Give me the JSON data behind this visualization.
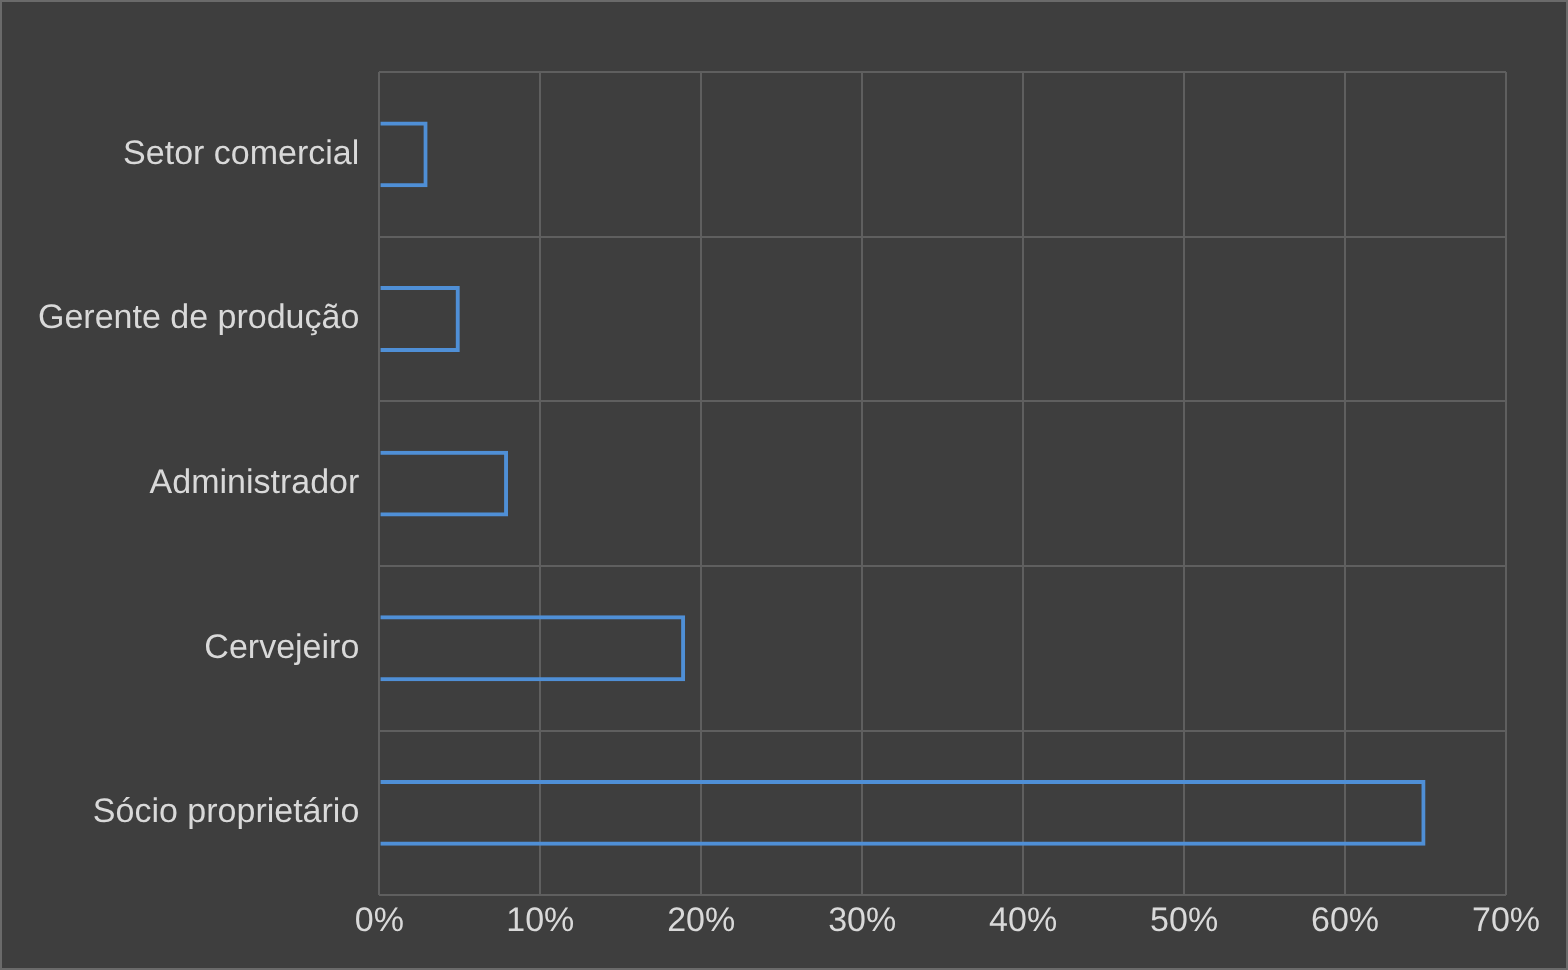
{
  "chart_data": {
    "type": "bar",
    "orientation": "horizontal",
    "categories": [
      "Setor comercial",
      "Gerente de produção",
      "Administrador",
      "Cervejeiro",
      "Sócio proprietário"
    ],
    "values": [
      3,
      5,
      8,
      19,
      65
    ],
    "color": "#4f8fd6",
    "xlim": [
      0,
      70
    ],
    "xticks": [
      {
        "value": 0,
        "label": "0%"
      },
      {
        "value": 10,
        "label": "10%"
      },
      {
        "value": 20,
        "label": "20%"
      },
      {
        "value": 30,
        "label": "30%"
      },
      {
        "value": 40,
        "label": "40%"
      },
      {
        "value": 50,
        "label": "50%"
      },
      {
        "value": 60,
        "label": "60%"
      },
      {
        "value": 70,
        "label": "70%"
      }
    ],
    "grid": true,
    "legend": false
  }
}
